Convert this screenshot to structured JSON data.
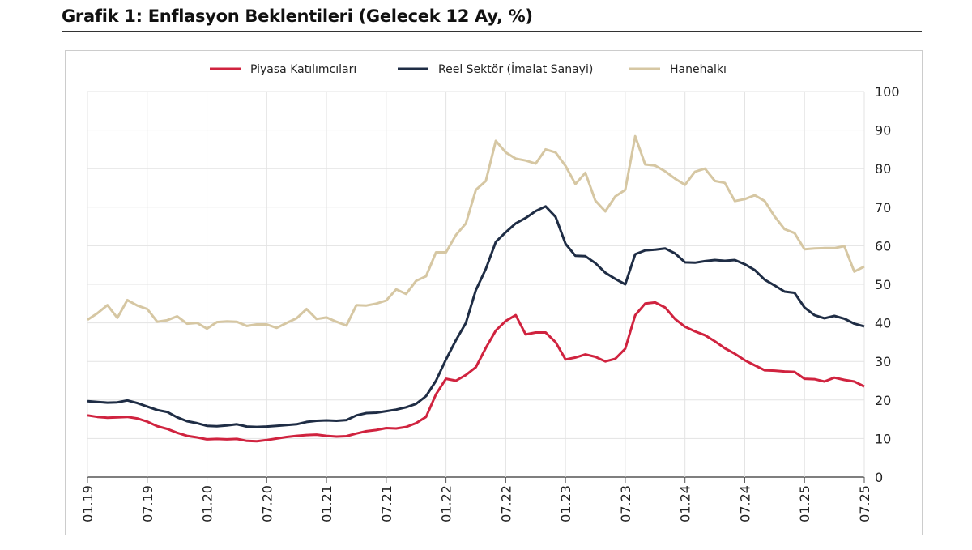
{
  "title": "Grafik 1: Enflasyon Beklentileri (Gelecek 12 Ay, %)",
  "chart_data": {
    "type": "line",
    "title": "Grafik 1: Enflasyon Beklentileri (Gelecek 12 Ay, %)",
    "xlabel": "",
    "ylabel": "",
    "ylim": [
      0,
      100
    ],
    "yticks": [
      "0",
      "10",
      "20",
      "30",
      "40",
      "50",
      "60",
      "70",
      "80",
      "90",
      "100"
    ],
    "xticks": [
      "01.19",
      "07.19",
      "01.20",
      "07.20",
      "01.21",
      "07.21",
      "01.22",
      "07.22",
      "01.23",
      "07.23",
      "01.24",
      "07.24",
      "01.25",
      "07.25"
    ],
    "x_start": "01.19",
    "x_frequency": "monthly",
    "grid": true,
    "legend_position": "top-center",
    "series": [
      {
        "name": "Piyasa Katılımcıları",
        "color": "#d0233f",
        "values": [
          16,
          15.6,
          15.4,
          15.5,
          15.6,
          15.2,
          14.4,
          13.2,
          12.5,
          11.5,
          10.7,
          10.3,
          9.8,
          9.9,
          9.8,
          9.9,
          9.4,
          9.3,
          9.6,
          10,
          10.4,
          10.7,
          10.9,
          11,
          10.7,
          10.5,
          10.6,
          11.3,
          11.9,
          12.2,
          12.7,
          12.6,
          13,
          14,
          15.6,
          21.5,
          25.5,
          25,
          26.5,
          28.5,
          33.5,
          38,
          40.5,
          42,
          37,
          37.5,
          37.5,
          35,
          30.5,
          31,
          31.8,
          31.2,
          30,
          30.7,
          33.3,
          42,
          45,
          45.3,
          44,
          41,
          39,
          37.8,
          36.8,
          35.2,
          33.4,
          32,
          30.3,
          29,
          27.7,
          27.6,
          27.4,
          27.3,
          25.5,
          25.4,
          24.8,
          25.8,
          25.2,
          24.8,
          23.5
        ]
      },
      {
        "name": "Reel Sektör (İmalat Sanayi)",
        "color": "#1f2d45",
        "values": [
          19.7,
          19.5,
          19.3,
          19.4,
          19.9,
          19.2,
          18.3,
          17.4,
          16.9,
          15.5,
          14.5,
          14,
          13.3,
          13.2,
          13.4,
          13.7,
          13.1,
          13,
          13.1,
          13.3,
          13.5,
          13.7,
          14.3,
          14.6,
          14.7,
          14.6,
          14.8,
          16,
          16.6,
          16.7,
          17.1,
          17.5,
          18.1,
          19,
          21,
          25,
          30.5,
          35.5,
          40,
          48.5,
          54,
          61,
          63.5,
          65.8,
          67.2,
          69,
          70.2,
          67.5,
          60.5,
          57.4,
          57.3,
          55.5,
          53,
          51.4,
          50,
          57.8,
          58.8,
          59,
          59.3,
          58,
          55.7,
          55.6,
          56,
          56.3,
          56.1,
          56.3,
          55.2,
          53.7,
          51.2,
          49.7,
          48.1,
          47.8,
          44,
          42,
          41.2,
          41.8,
          41.1,
          39.8,
          39.1
        ]
      },
      {
        "name": "Hanehalkı",
        "color": "#d6c7a3",
        "values": [
          40.8,
          42.5,
          44.6,
          41.3,
          45.9,
          44.5,
          43.6,
          40.3,
          40.7,
          41.7,
          39.8,
          40,
          38.5,
          40.2,
          40.4,
          40.3,
          39.2,
          39.6,
          39.6,
          38.7,
          40,
          41.2,
          43.6,
          41,
          41.4,
          40.3,
          39.3,
          44.6,
          44.5,
          45,
          45.8,
          48.7,
          47.5,
          50.9,
          52.1,
          58.3,
          58.3,
          62.8,
          65.8,
          74.5,
          76.8,
          87.2,
          84.2,
          82.6,
          82.1,
          81.3,
          85,
          84.2,
          80.7,
          76,
          78.9,
          71.7,
          68.9,
          72.8,
          74.5,
          88.4,
          81.1,
          80.8,
          79.3,
          77.4,
          75.8,
          79.2,
          80,
          76.8,
          76.3,
          71.6,
          72.1,
          73.1,
          71.6,
          67.6,
          64.3,
          63.3,
          59.1,
          59.3,
          59.4,
          59.4,
          59.9,
          53.3,
          54.6
        ]
      }
    ]
  }
}
